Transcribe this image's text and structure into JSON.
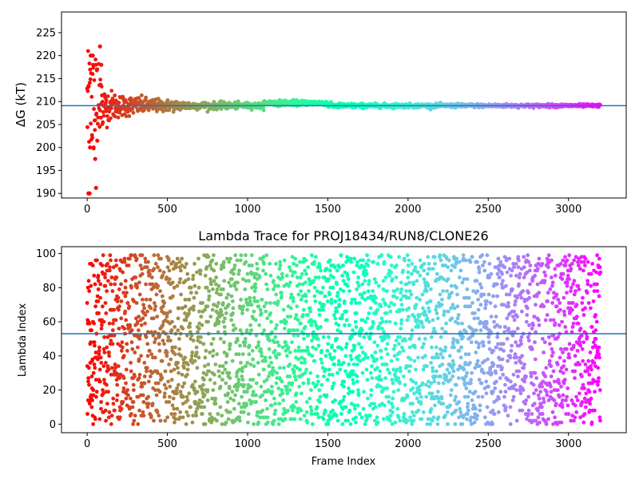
{
  "chart_data": [
    {
      "type": "scatter",
      "title": "",
      "xlabel": "",
      "ylabel": "ΔG (kT)",
      "xlim": [
        -160,
        3360
      ],
      "ylim": [
        189,
        229.5
      ],
      "xticks": [
        0,
        500,
        1000,
        1500,
        2000,
        2500,
        3000
      ],
      "yticks": [
        190,
        195,
        200,
        205,
        210,
        215,
        220,
        225
      ],
      "grid": false,
      "colormap": "rainbow",
      "reference_line": {
        "y": 209.1,
        "color": "#1f77b4"
      },
      "series": [
        {
          "n_points": 3200,
          "x_range": [
            0,
            3200
          ],
          "value_around": 209.1,
          "spread_profile": [
            [
              0,
              12
            ],
            [
              60,
              12
            ],
            [
              100,
              4
            ],
            [
              200,
              2.5
            ],
            [
              400,
              1.5
            ],
            [
              700,
              0.8
            ],
            [
              1100,
              0.6
            ],
            [
              1500,
              0.5
            ],
            [
              3200,
              0.3
            ]
          ],
          "notable_points": [
            {
              "x": 8,
              "y": 190
            },
            {
              "x": 15,
              "y": 190
            },
            {
              "x": 22,
              "y": 220
            },
            {
              "x": 35,
              "y": 220
            },
            {
              "x": 18,
              "y": 200
            },
            {
              "x": 40,
              "y": 200
            },
            {
              "x": 50,
              "y": 197.5
            },
            {
              "x": 55,
              "y": 191.2
            },
            {
              "x": 62,
              "y": 217
            },
            {
              "x": 80,
              "y": 222
            },
            {
              "x": 88,
              "y": 218
            }
          ]
        }
      ]
    },
    {
      "type": "scatter",
      "title": "Lambda Trace for PROJ18434/RUN8/CLONE26",
      "xlabel": "Frame Index",
      "ylabel": "Lambda Index",
      "xlim": [
        -160,
        3360
      ],
      "ylim": [
        -5,
        104
      ],
      "xticks": [
        0,
        500,
        1000,
        1500,
        2000,
        2500,
        3000
      ],
      "yticks": [
        0,
        20,
        40,
        60,
        80,
        100
      ],
      "grid": false,
      "colormap": "rainbow",
      "reference_line": {
        "y": 53,
        "color": "#1f77b4"
      },
      "series": [
        {
          "n_points": 3200,
          "x_range": [
            0,
            3200
          ],
          "y_range": [
            0,
            99
          ]
        }
      ]
    }
  ]
}
